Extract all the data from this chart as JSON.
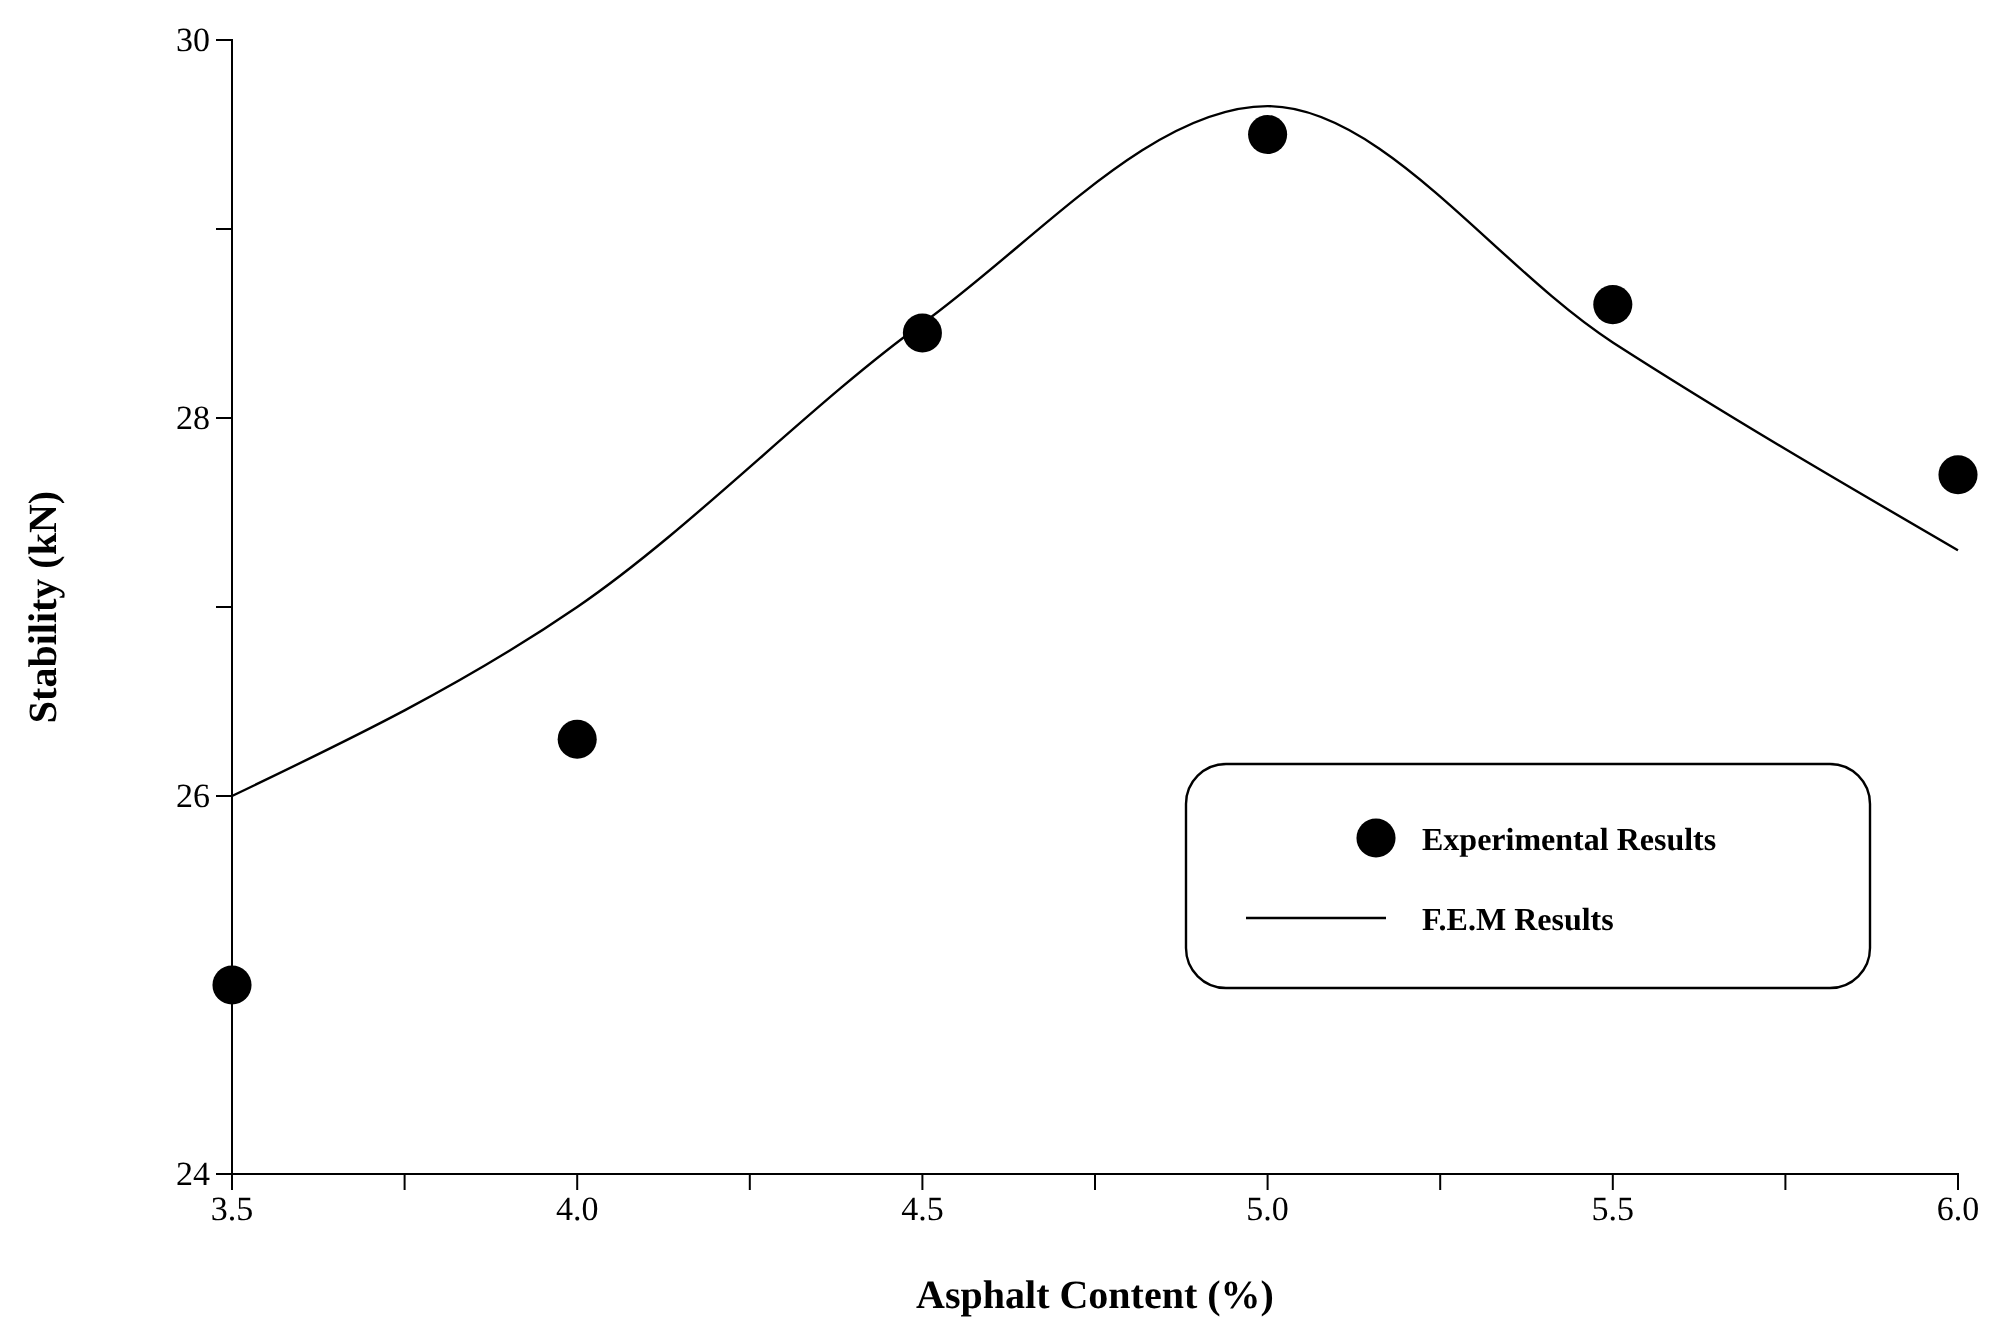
{
  "chart_data": {
    "type": "scatter",
    "xlabel": "Asphalt Content (%)",
    "ylabel": "Stability (kN)",
    "xlim": [
      3.5,
      6.0
    ],
    "ylim": [
      24,
      30
    ],
    "xticks": [
      {
        "value": 3.5,
        "label": "3.5"
      },
      {
        "value": 3.75,
        "label": null
      },
      {
        "value": 4.0,
        "label": "4.0"
      },
      {
        "value": 4.25,
        "label": null
      },
      {
        "value": 4.5,
        "label": "4.5"
      },
      {
        "value": 4.75,
        "label": null
      },
      {
        "value": 5.0,
        "label": "5.0"
      },
      {
        "value": 5.25,
        "label": null
      },
      {
        "value": 5.5,
        "label": "5.5"
      },
      {
        "value": 5.75,
        "label": null
      },
      {
        "value": 6.0,
        "label": "6.0"
      }
    ],
    "yticks": [
      24,
      {
        "value": 25,
        "label": null
      },
      26,
      {
        "value": 27,
        "label": null
      },
      28,
      {
        "value": 29,
        "label": null
      },
      30
    ],
    "grid": false,
    "legend": "bottom right",
    "series": [
      {
        "name": "Experimental Results",
        "marker": "circle",
        "color": "#000000",
        "x": [
          3.5,
          4.0,
          4.5,
          5.0,
          5.5,
          6.0
        ],
        "values": [
          25.0,
          26.3,
          28.45,
          29.5,
          28.6,
          27.7
        ]
      },
      {
        "name": "F.E.M Results",
        "type": "line",
        "marker": "none",
        "line_style": "solid",
        "color": "#000000",
        "x": [
          3.5,
          4.0,
          4.5,
          5.0,
          5.5,
          6.0
        ],
        "values": [
          26.0,
          27.0,
          28.5,
          29.65,
          28.4,
          27.3
        ]
      }
    ]
  }
}
